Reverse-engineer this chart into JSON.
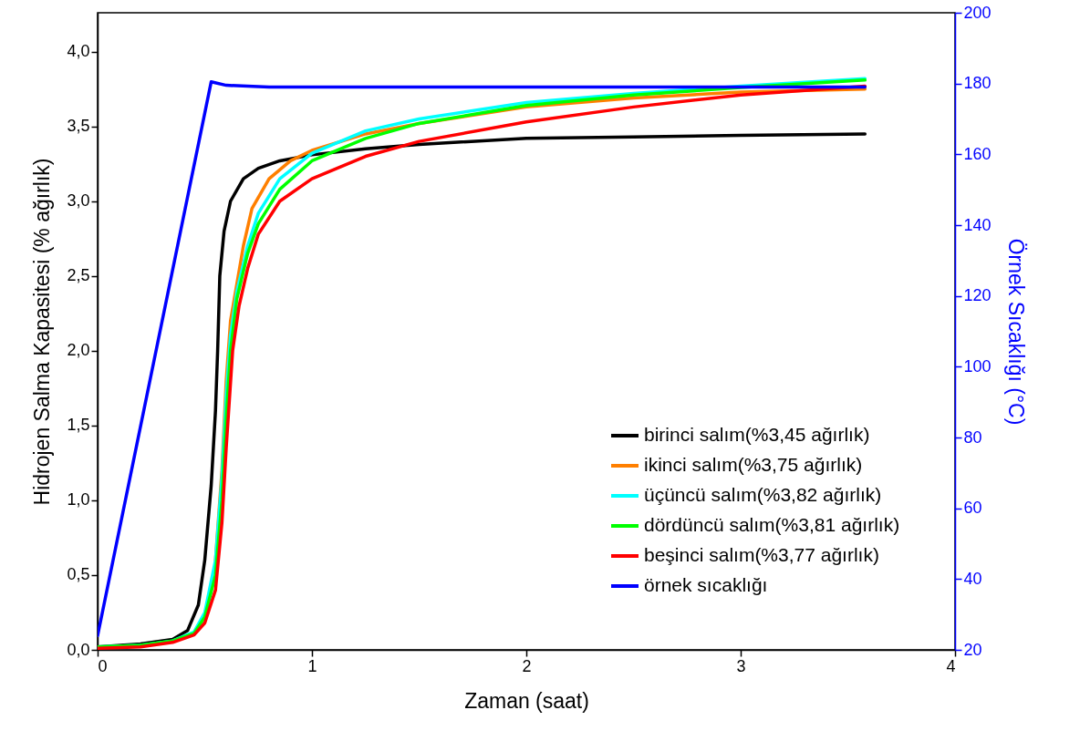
{
  "chart_data": {
    "type": "line",
    "xlabel": "Zaman (saat)",
    "ylabel": "Hidrojen Salma Kapasitesi (% ağırlık)",
    "y2label": "Örnek Sıcaklığı (°C)",
    "xlim": [
      0,
      4
    ],
    "xticks": [
      0,
      1,
      2,
      3,
      4
    ],
    "ylim": [
      0,
      4.26
    ],
    "yticks": [
      {
        "value": 0,
        "label": "0,0"
      },
      {
        "value": 0.5,
        "label": "0,5"
      },
      {
        "value": 1,
        "label": "1,0"
      },
      {
        "value": 1.5,
        "label": "1,5"
      },
      {
        "value": 2,
        "label": "2,0"
      },
      {
        "value": 2.5,
        "label": "2,5"
      },
      {
        "value": 3,
        "label": "3,0"
      },
      {
        "value": 3.5,
        "label": "3,5"
      },
      {
        "value": 4,
        "label": "4,0"
      }
    ],
    "y2lim": [
      20,
      200
    ],
    "y2ticks": [
      20,
      40,
      60,
      80,
      100,
      120,
      140,
      160,
      180,
      200
    ],
    "grid": false,
    "legend": "bottom right",
    "marker": "none",
    "line_style": "solid",
    "series": [
      {
        "name": "birinci salım(%3,45 ağırlık)",
        "color": "#000000",
        "x": [
          0,
          0.2,
          0.35,
          0.42,
          0.47,
          0.5,
          0.53,
          0.55,
          0.56,
          0.57,
          0.59,
          0.62,
          0.68,
          0.75,
          0.85,
          1.0,
          1.25,
          1.5,
          2.0,
          2.5,
          3.0,
          3.58
        ],
        "values": [
          0.02,
          0.04,
          0.07,
          0.13,
          0.3,
          0.6,
          1.1,
          1.6,
          2.0,
          2.5,
          2.8,
          3.0,
          3.15,
          3.22,
          3.27,
          3.31,
          3.35,
          3.38,
          3.42,
          3.43,
          3.44,
          3.45
        ]
      },
      {
        "name": "ikinci salım(%3,75 ağırlık)",
        "color": "#ff7f00",
        "x": [
          0.55,
          0.58,
          0.6,
          0.62,
          0.65,
          0.68,
          0.72,
          0.8,
          0.9,
          1.0,
          1.25,
          1.5,
          2.0,
          2.5,
          3.0,
          3.58
        ],
        "values": [
          0.6,
          1.2,
          1.8,
          2.2,
          2.45,
          2.7,
          2.95,
          3.15,
          3.27,
          3.34,
          3.45,
          3.52,
          3.63,
          3.69,
          3.73,
          3.75
        ]
      },
      {
        "name": "üçüncü salım(%3,82 ağırlık)",
        "color": "#00ffff",
        "x": [
          0,
          0.2,
          0.35,
          0.45,
          0.5,
          0.55,
          0.58,
          0.6,
          0.62,
          0.65,
          0.7,
          0.75,
          0.85,
          1.0,
          1.25,
          1.5,
          2.0,
          2.5,
          3.0,
          3.58
        ],
        "values": [
          0.02,
          0.03,
          0.06,
          0.12,
          0.25,
          0.6,
          1.15,
          1.7,
          2.1,
          2.4,
          2.7,
          2.92,
          3.15,
          3.32,
          3.47,
          3.55,
          3.66,
          3.72,
          3.77,
          3.82
        ]
      },
      {
        "name": "dördüncü salım(%3,81 ağırlık)",
        "color": "#00ff00",
        "x": [
          0,
          0.2,
          0.35,
          0.45,
          0.5,
          0.55,
          0.58,
          0.6,
          0.62,
          0.65,
          0.7,
          0.75,
          0.85,
          1.0,
          1.25,
          1.5,
          2.0,
          2.5,
          3.0,
          3.58
        ],
        "values": [
          0.02,
          0.03,
          0.06,
          0.11,
          0.22,
          0.5,
          1.0,
          1.55,
          2.0,
          2.35,
          2.65,
          2.85,
          3.08,
          3.27,
          3.42,
          3.52,
          3.64,
          3.71,
          3.76,
          3.81
        ]
      },
      {
        "name": "beşinci salım(%3,77 ağırlık)",
        "color": "#ff0000",
        "x": [
          0,
          0.2,
          0.35,
          0.45,
          0.5,
          0.55,
          0.58,
          0.6,
          0.63,
          0.66,
          0.7,
          0.75,
          0.85,
          1.0,
          1.25,
          1.5,
          2.0,
          2.5,
          3.0,
          3.58
        ],
        "values": [
          0.01,
          0.02,
          0.05,
          0.1,
          0.18,
          0.4,
          0.85,
          1.35,
          2.0,
          2.3,
          2.55,
          2.78,
          3.0,
          3.15,
          3.3,
          3.4,
          3.53,
          3.63,
          3.71,
          3.77
        ]
      },
      {
        "name": "örnek sıcaklığı",
        "color": "#0000ff",
        "axis": "y2",
        "x": [
          0,
          0.53,
          0.6,
          0.8,
          1.5,
          2.5,
          3.58
        ],
        "values": [
          24,
          180.5,
          179.5,
          179,
          179,
          179,
          179
        ]
      }
    ]
  }
}
